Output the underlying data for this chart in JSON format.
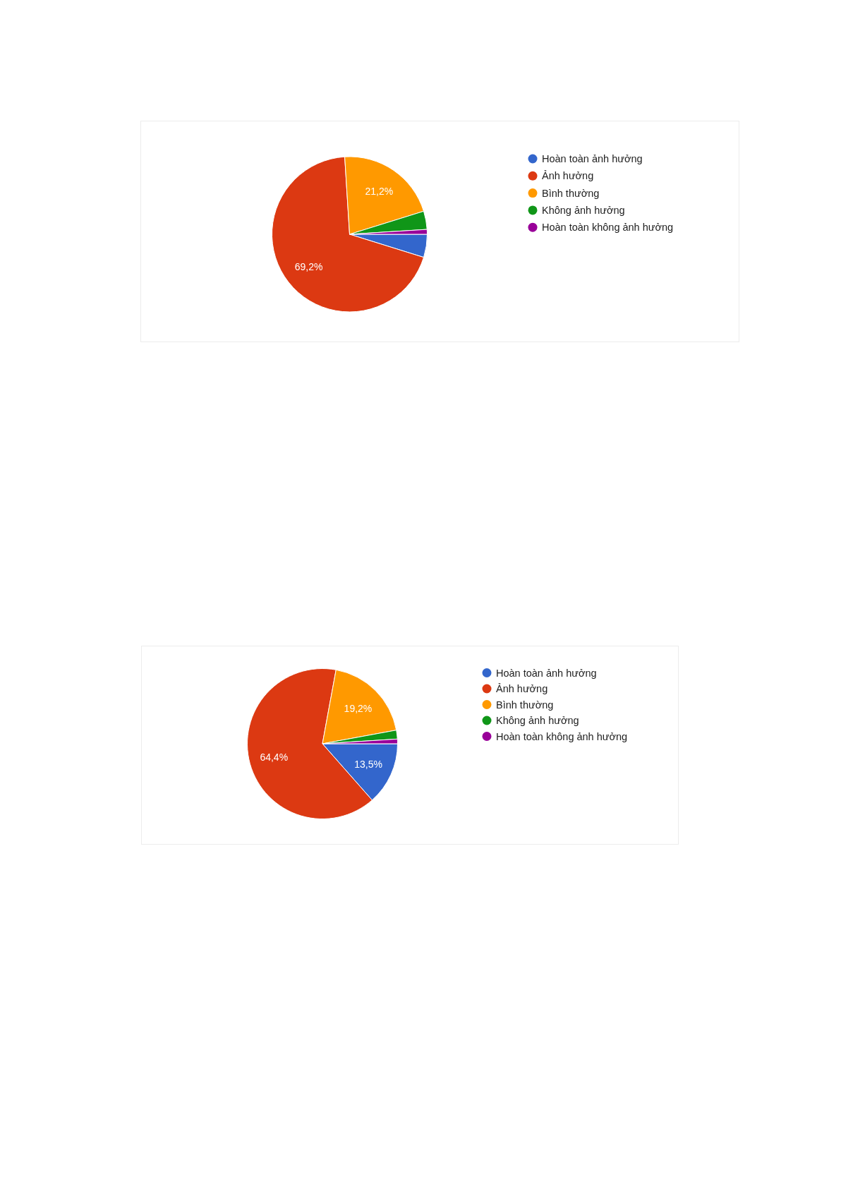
{
  "chart_data": [
    {
      "type": "pie",
      "categories": [
        "Hoàn toàn ảnh hưởng",
        "Ảnh hưởng",
        "Bình thường",
        "Không ảnh hưởng",
        "Hoàn toàn không ảnh hưởng"
      ],
      "values": [
        4.8,
        69.2,
        21.2,
        3.8,
        1.0
      ],
      "colors": [
        "#3366cc",
        "#dc3912",
        "#ff9900",
        "#109618",
        "#990099"
      ],
      "value_labels": [
        null,
        "69,2%",
        "21,2%",
        null,
        null
      ],
      "legend": "right"
    },
    {
      "type": "pie",
      "categories": [
        "Hoàn toàn ảnh hưởng",
        "Ảnh hưởng",
        "Bình thường",
        "Không ảnh hưởng",
        "Hoàn toàn không ảnh hưởng"
      ],
      "values": [
        13.5,
        64.4,
        19.2,
        1.9,
        1.0
      ],
      "colors": [
        "#3366cc",
        "#dc3912",
        "#ff9900",
        "#109618",
        "#990099"
      ],
      "value_labels": [
        "13,5%",
        "64,4%",
        "19,2%",
        null,
        null
      ],
      "legend": "right"
    }
  ]
}
